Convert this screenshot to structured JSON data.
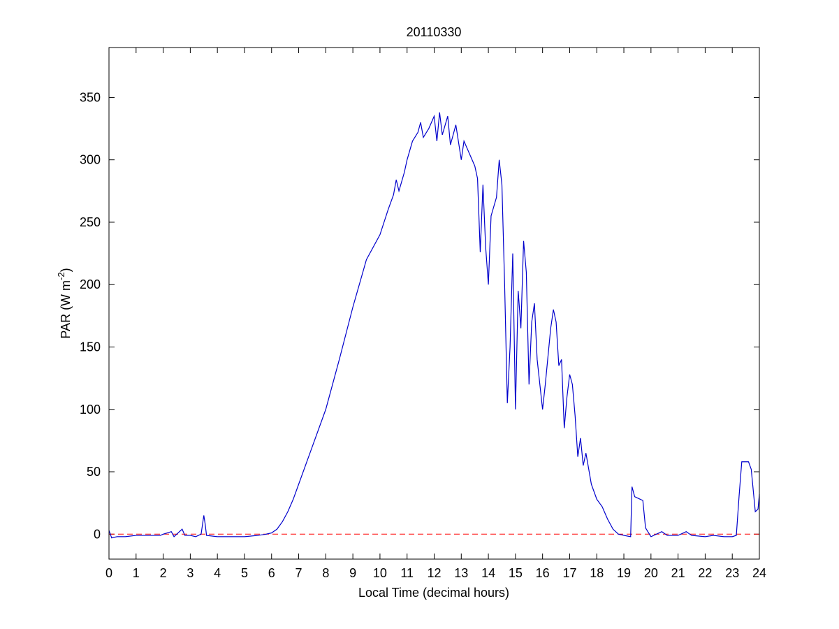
{
  "chart_data": {
    "type": "line",
    "title": "20110330",
    "xlabel": "Local Time (decimal hours)",
    "ylabel_parts": [
      "PAR (W m",
      "-2",
      ")"
    ],
    "xlim": [
      0,
      24
    ],
    "xticks": [
      0,
      1,
      2,
      3,
      4,
      5,
      6,
      7,
      8,
      9,
      10,
      11,
      12,
      13,
      14,
      15,
      16,
      17,
      18,
      19,
      20,
      21,
      22,
      23,
      24
    ],
    "ylim": [
      -20,
      390
    ],
    "yticks": [
      0,
      50,
      100,
      150,
      200,
      250,
      300,
      350
    ],
    "reference_line": {
      "y": 0,
      "color": "#ff0000",
      "style": "dashed"
    },
    "series": [
      {
        "color": "#0000cc",
        "x": [
          0,
          0.1,
          0.3,
          0.6,
          1.0,
          1.5,
          1.9,
          2.0,
          2.3,
          2.4,
          2.7,
          2.8,
          3.0,
          3.2,
          3.4,
          3.5,
          3.55,
          3.6,
          4.0,
          4.5,
          5.0,
          5.5,
          5.8,
          6.0,
          6.2,
          6.4,
          6.6,
          6.8,
          7.0,
          7.5,
          8.0,
          8.5,
          9.0,
          9.5,
          10.0,
          10.3,
          10.5,
          10.6,
          10.7,
          10.9,
          11.0,
          11.2,
          11.4,
          11.5,
          11.6,
          11.8,
          12.0,
          12.1,
          12.2,
          12.3,
          12.5,
          12.6,
          12.8,
          13.0,
          13.1,
          13.3,
          13.5,
          13.6,
          13.7,
          13.8,
          13.9,
          14.0,
          14.1,
          14.3,
          14.4,
          14.5,
          14.6,
          14.7,
          14.8,
          14.9,
          15.0,
          15.1,
          15.2,
          15.3,
          15.4,
          15.5,
          15.6,
          15.7,
          15.8,
          16.0,
          16.1,
          16.3,
          16.4,
          16.5,
          16.6,
          16.7,
          16.8,
          16.9,
          17.0,
          17.1,
          17.2,
          17.3,
          17.4,
          17.5,
          17.6,
          17.8,
          18.0,
          18.2,
          18.4,
          18.6,
          18.8,
          19.0,
          19.25,
          19.3,
          19.4,
          19.6,
          19.7,
          19.8,
          20.0,
          20.4,
          20.6,
          21.0,
          21.3,
          21.5,
          22.0,
          22.3,
          22.7,
          23.0,
          23.15,
          23.25,
          23.35,
          23.6,
          23.7,
          23.85,
          23.95,
          24.0
        ],
        "values": [
          3,
          -3,
          -2,
          -2,
          -1,
          -1,
          -1,
          0,
          2,
          -2,
          4,
          -1,
          -1,
          -2,
          0,
          15,
          8,
          -1,
          -2,
          -2,
          -2,
          -1,
          0,
          1,
          4,
          10,
          18,
          28,
          40,
          70,
          100,
          140,
          182,
          220,
          240,
          260,
          272,
          284,
          275,
          290,
          300,
          315,
          322,
          330,
          318,
          325,
          335,
          315,
          338,
          320,
          335,
          312,
          328,
          300,
          315,
          305,
          295,
          285,
          226,
          280,
          230,
          200,
          255,
          270,
          300,
          280,
          200,
          105,
          150,
          225,
          100,
          195,
          165,
          235,
          210,
          120,
          170,
          185,
          140,
          100,
          120,
          165,
          180,
          170,
          135,
          140,
          85,
          110,
          128,
          120,
          95,
          62,
          77,
          55,
          65,
          40,
          28,
          22,
          12,
          4,
          0,
          -1,
          -2,
          38,
          30,
          28,
          27,
          5,
          -2,
          2,
          -1,
          -1,
          2,
          -1,
          -2,
          -1,
          -2,
          -2,
          -1,
          30,
          58,
          58,
          52,
          18,
          20,
          32
        ]
      }
    ]
  }
}
